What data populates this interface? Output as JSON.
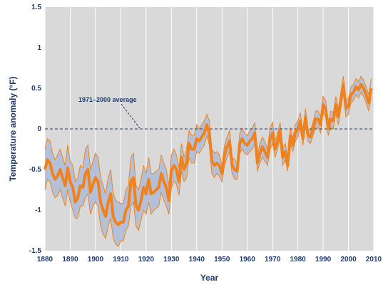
{
  "chart_data": {
    "type": "line",
    "xlabel": "Year",
    "ylabel": "Temperature anomaly (°F)",
    "xlim": [
      1880,
      2010
    ],
    "ylim": [
      -1.5,
      1.5
    ],
    "xticks": [
      1880,
      1890,
      1900,
      1910,
      1920,
      1930,
      1940,
      1950,
      1960,
      1970,
      1980,
      1990,
      2000,
      2010
    ],
    "yticks": [
      -1.5,
      -1,
      -0.5,
      0,
      0.5,
      1,
      1.5
    ],
    "ytick_labels": [
      "-1.5",
      "-1",
      "-0.5",
      "0",
      "0.5",
      "1",
      "1.5"
    ],
    "grid": "vertical",
    "baseline": {
      "y": 0,
      "label": "1971–2000 average",
      "style": "dashed"
    },
    "colors": {
      "plot_background": "#d9d9d9",
      "grid": "#ffffff",
      "band": "#b4c0d8",
      "band_edge": "#f0821e",
      "line": "#f0821e",
      "text": "#1f3a6b"
    },
    "series": [
      {
        "x": [
          1880,
          1881,
          1882,
          1883,
          1884,
          1885,
          1886,
          1887,
          1888,
          1889,
          1890,
          1891,
          1892,
          1893,
          1894,
          1895,
          1896,
          1897,
          1898,
          1899,
          1900,
          1901,
          1902,
          1903,
          1904,
          1905,
          1906,
          1907,
          1908,
          1909,
          1910,
          1911,
          1912,
          1913,
          1914,
          1915,
          1916,
          1917,
          1918,
          1919,
          1920,
          1921,
          1922,
          1923,
          1924,
          1925,
          1926,
          1927,
          1928,
          1929,
          1930,
          1931,
          1932,
          1933,
          1934,
          1935,
          1936,
          1937,
          1938,
          1939,
          1940,
          1941,
          1942,
          1943,
          1944,
          1945,
          1946,
          1947,
          1948,
          1949,
          1950,
          1951,
          1952,
          1953,
          1954,
          1955,
          1956,
          1957,
          1958,
          1959,
          1960,
          1961,
          1962,
          1963,
          1964,
          1965,
          1966,
          1967,
          1968,
          1969,
          1970,
          1971,
          1972,
          1973,
          1974,
          1975,
          1976,
          1977,
          1978,
          1979,
          1980,
          1981,
          1982,
          1983,
          1984,
          1985,
          1986,
          1987,
          1988,
          1989,
          1990,
          1991,
          1992,
          1993,
          1994,
          1995,
          1996,
          1997,
          1998,
          1999,
          2000,
          2001,
          2002,
          2003,
          2004,
          2005,
          2006,
          2007,
          2008,
          2009
        ],
        "y": [
          -0.5,
          -0.38,
          -0.42,
          -0.55,
          -0.62,
          -0.58,
          -0.5,
          -0.6,
          -0.7,
          -0.48,
          -0.65,
          -0.72,
          -0.9,
          -0.85,
          -0.7,
          -0.72,
          -0.55,
          -0.5,
          -0.78,
          -0.68,
          -0.6,
          -0.65,
          -0.9,
          -1.0,
          -1.08,
          -0.9,
          -0.8,
          -1.08,
          -1.15,
          -1.18,
          -1.15,
          -1.15,
          -1.0,
          -0.95,
          -0.65,
          -0.6,
          -0.95,
          -1.0,
          -0.88,
          -0.72,
          -0.8,
          -0.62,
          -0.8,
          -0.78,
          -0.75,
          -0.72,
          -0.55,
          -0.65,
          -0.72,
          -0.88,
          -0.52,
          -0.45,
          -0.5,
          -0.65,
          -0.35,
          -0.5,
          -0.42,
          -0.18,
          -0.25,
          -0.25,
          -0.12,
          -0.15,
          -0.1,
          -0.05,
          0.05,
          -0.05,
          -0.4,
          -0.45,
          -0.42,
          -0.45,
          -0.55,
          -0.32,
          -0.22,
          -0.15,
          -0.45,
          -0.5,
          -0.52,
          -0.18,
          -0.12,
          -0.18,
          -0.2,
          -0.15,
          -0.12,
          -0.05,
          -0.42,
          -0.3,
          -0.22,
          -0.28,
          -0.35,
          -0.12,
          -0.05,
          -0.25,
          -0.15,
          -0.02,
          -0.35,
          -0.28,
          -0.45,
          -0.08,
          -0.2,
          -0.05,
          0.0,
          0.1,
          -0.12,
          0.15,
          -0.08,
          -0.1,
          0.0,
          0.12,
          0.12,
          0.05,
          0.3,
          0.25,
          0.0,
          0.12,
          0.1,
          0.3,
          0.15,
          0.35,
          0.55,
          0.25,
          0.28,
          0.42,
          0.45,
          0.52,
          0.48,
          0.55,
          0.5,
          0.42,
          0.32,
          0.5
        ],
        "lower": [
          -0.75,
          -0.62,
          -0.65,
          -0.78,
          -0.85,
          -0.82,
          -0.75,
          -0.85,
          -0.95,
          -0.75,
          -0.9,
          -1.0,
          -1.1,
          -1.1,
          -0.95,
          -0.95,
          -0.85,
          -0.8,
          -1.05,
          -0.95,
          -0.9,
          -0.95,
          -1.2,
          -1.3,
          -1.35,
          -1.2,
          -1.1,
          -1.35,
          -1.42,
          -1.45,
          -1.38,
          -1.38,
          -1.25,
          -1.2,
          -0.95,
          -0.9,
          -1.2,
          -1.25,
          -1.12,
          -1.0,
          -1.05,
          -0.9,
          -1.05,
          -1.0,
          -0.98,
          -0.95,
          -0.78,
          -0.88,
          -0.95,
          -1.05,
          -0.72,
          -0.65,
          -0.68,
          -0.82,
          -0.52,
          -0.65,
          -0.6,
          -0.35,
          -0.42,
          -0.42,
          -0.28,
          -0.3,
          -0.25,
          -0.2,
          -0.08,
          -0.2,
          -0.55,
          -0.6,
          -0.55,
          -0.58,
          -0.65,
          -0.45,
          -0.35,
          -0.28,
          -0.55,
          -0.62,
          -0.62,
          -0.3,
          -0.25,
          -0.3,
          -0.32,
          -0.28,
          -0.25,
          -0.18,
          -0.52,
          -0.42,
          -0.35,
          -0.4,
          -0.45,
          -0.25,
          -0.18,
          -0.35,
          -0.25,
          -0.12,
          -0.45,
          -0.38,
          -0.52,
          -0.18,
          -0.28,
          -0.15,
          -0.1,
          0.0,
          -0.2,
          0.05,
          -0.15,
          -0.18,
          -0.08,
          0.02,
          0.02,
          -0.05,
          0.2,
          0.15,
          -0.08,
          0.02,
          0.0,
          0.2,
          0.05,
          0.25,
          0.45,
          0.15,
          0.18,
          0.32,
          0.35,
          0.42,
          0.38,
          0.45,
          0.4,
          0.32,
          0.22,
          0.38
        ],
        "upper": [
          -0.25,
          -0.12,
          -0.15,
          -0.3,
          -0.38,
          -0.32,
          -0.25,
          -0.35,
          -0.45,
          -0.2,
          -0.4,
          -0.45,
          -0.65,
          -0.6,
          -0.45,
          -0.48,
          -0.25,
          -0.2,
          -0.5,
          -0.4,
          -0.3,
          -0.35,
          -0.6,
          -0.7,
          -0.8,
          -0.6,
          -0.5,
          -0.8,
          -0.88,
          -0.9,
          -0.92,
          -0.92,
          -0.75,
          -0.7,
          -0.35,
          -0.3,
          -0.7,
          -0.75,
          -0.62,
          -0.45,
          -0.55,
          -0.35,
          -0.55,
          -0.55,
          -0.52,
          -0.5,
          -0.32,
          -0.42,
          -0.5,
          -0.7,
          -0.32,
          -0.25,
          -0.32,
          -0.48,
          -0.18,
          -0.35,
          -0.25,
          -0.02,
          -0.08,
          -0.08,
          0.05,
          0.0,
          0.05,
          0.1,
          0.18,
          0.1,
          -0.25,
          -0.3,
          -0.28,
          -0.32,
          -0.45,
          -0.2,
          -0.1,
          -0.02,
          -0.35,
          -0.38,
          -0.42,
          -0.06,
          0.01,
          -0.06,
          -0.08,
          -0.02,
          0.01,
          0.08,
          -0.32,
          -0.18,
          -0.1,
          -0.16,
          -0.25,
          0.01,
          0.08,
          -0.15,
          -0.05,
          0.08,
          -0.25,
          -0.18,
          -0.38,
          0.02,
          -0.12,
          0.05,
          0.1,
          0.2,
          -0.04,
          0.25,
          0.0,
          -0.02,
          0.08,
          0.22,
          0.22,
          0.15,
          0.4,
          0.35,
          0.08,
          0.22,
          0.2,
          0.4,
          0.25,
          0.45,
          0.65,
          0.35,
          0.38,
          0.52,
          0.55,
          0.62,
          0.58,
          0.65,
          0.6,
          0.52,
          0.42,
          0.62
        ]
      }
    ]
  }
}
